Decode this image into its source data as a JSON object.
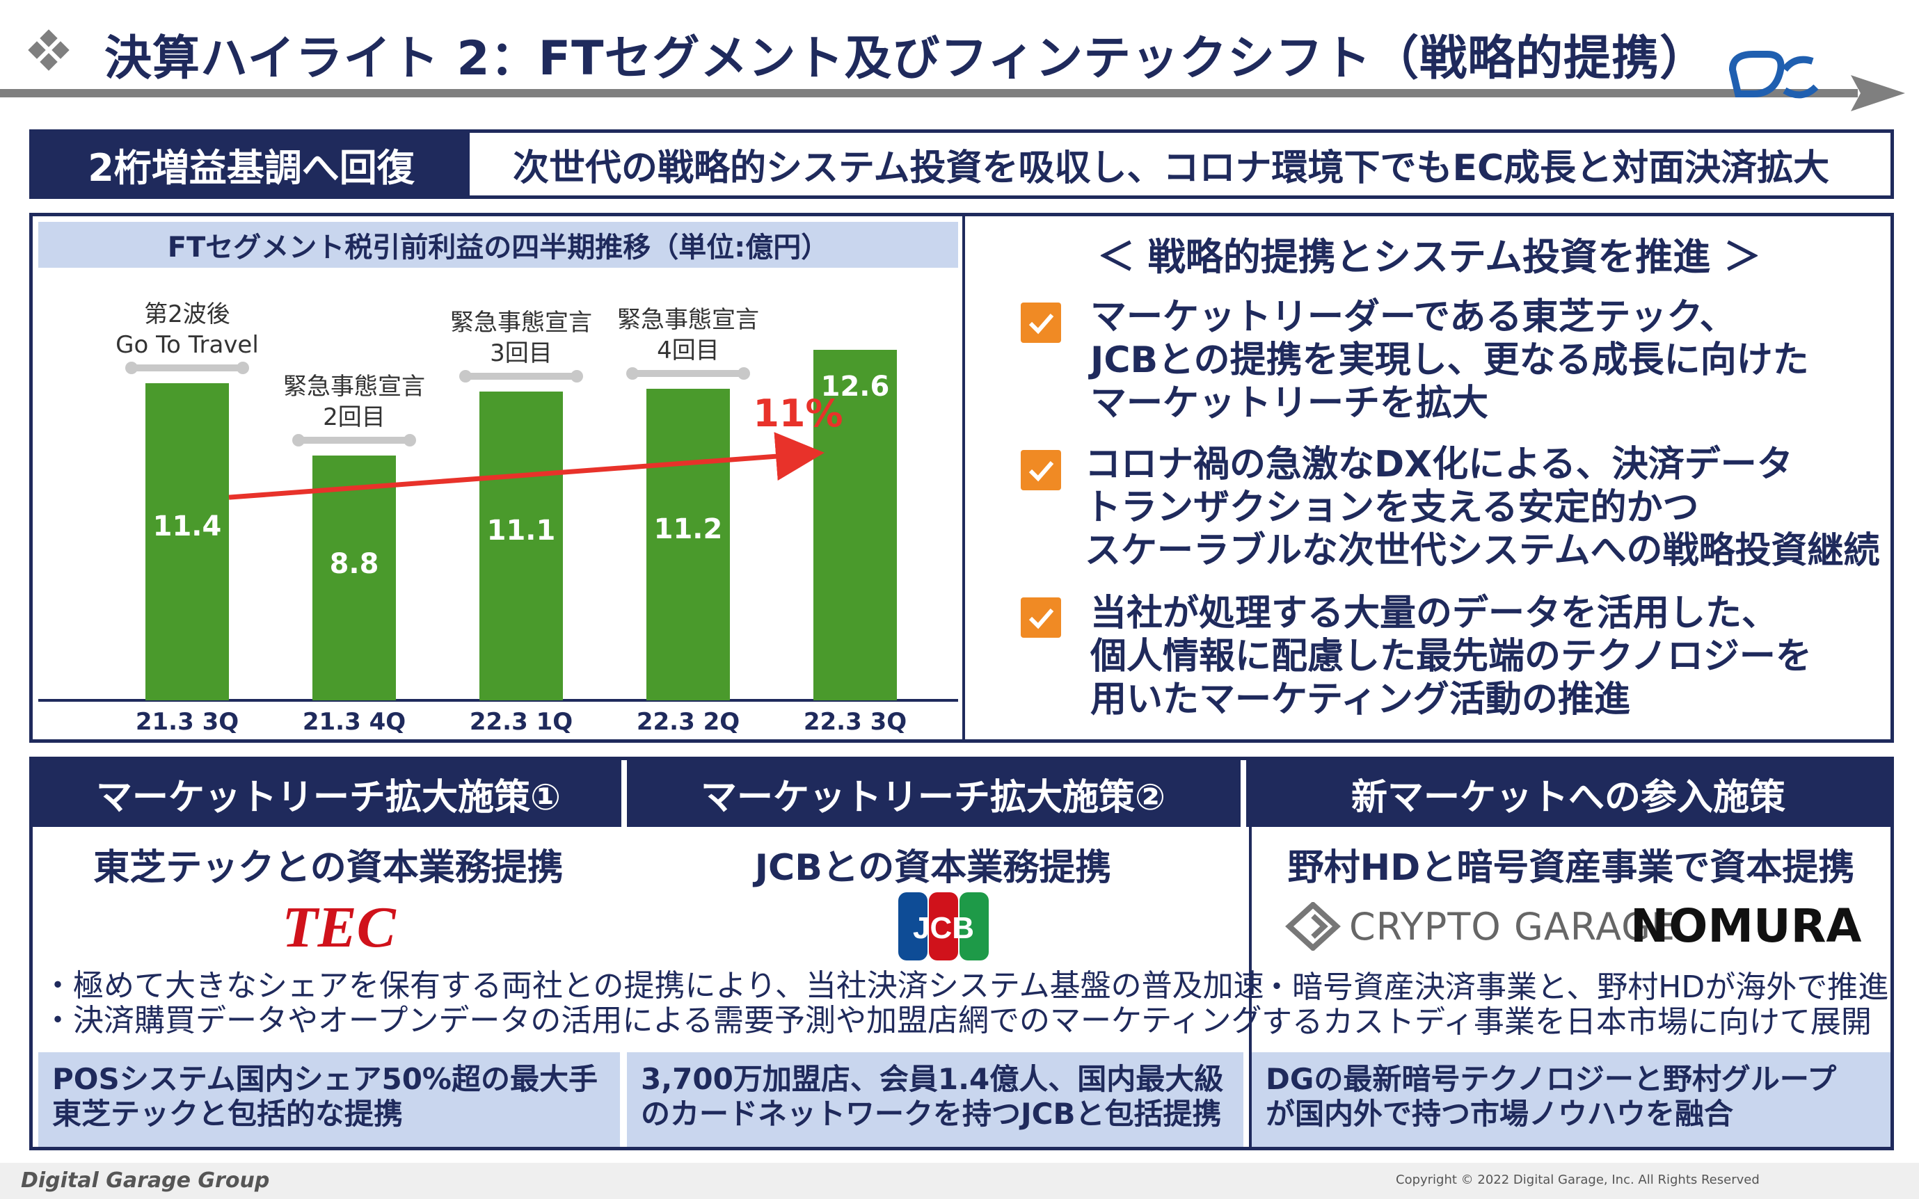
{
  "header": {
    "title": "決算ハイライト 2：FTセグメント及びフィンテックシフト（戦略的提携）"
  },
  "headline": {
    "tag": "2桁増益基調へ回復",
    "text": "次世代の戦略的システム投資を吸収し、コロナ環境下でもEC成長と対面決済拡大"
  },
  "chart_data": {
    "type": "bar",
    "title": "FTセグメント税引前利益の四半期推移（単位:億円）",
    "categories": [
      "21.3 3Q",
      "21.3 4Q",
      "22.3 1Q",
      "22.3 2Q",
      "22.3 3Q"
    ],
    "values": [
      11.4,
      8.8,
      11.1,
      11.2,
      12.6
    ],
    "value_labels": [
      "11.4",
      "8.8",
      "11.1",
      "11.2",
      "12.6"
    ],
    "bar_color": "#4a9a2c",
    "annotations": [
      {
        "category": "21.3 3Q",
        "lines": [
          "第2波後",
          "Go To Travel"
        ]
      },
      {
        "category": "21.3 4Q",
        "lines": [
          "緊急事態宣言",
          "2回目"
        ]
      },
      {
        "category": "22.3 1Q",
        "lines": [
          "緊急事態宣言",
          "3回目"
        ]
      },
      {
        "category": "22.3 2Q",
        "lines": [
          "緊急事態宣言",
          "4回目"
        ]
      }
    ],
    "growth_label": "11%",
    "growth_color": "#e8322a",
    "ylim": [
      0,
      14
    ]
  },
  "right": {
    "heading": "＜ 戦略的提携とシステム投資を推進 ＞",
    "bullets": [
      {
        "lines": [
          "マーケットリーダーである東芝テック、",
          "JCBとの提携を実現し、更なる成長に向けた",
          "マーケットリーチを拡大"
        ]
      },
      {
        "lines": [
          "コロナ禍の急激なDX化による、決済データ",
          "トランザクションを支える安定的かつ",
          "スケーラブルな次世代システムへの戦略投資継続"
        ]
      },
      {
        "lines": [
          "当社が処理する大量のデータを活用した、",
          "個人情報に配慮した最先端のテクノロジーを",
          "用いたマーケティング活動の推進"
        ]
      }
    ],
    "check_color": "#f08a24"
  },
  "bottom": {
    "col1": {
      "header": "マーケットリーチ拡大施策①",
      "subtitle": "東芝テックとの資本業務提携",
      "logo_text": "TEC",
      "summary": [
        "POSシステム国内シェア50%超の最大手",
        "東芝テックと包括的な提携"
      ]
    },
    "col2": {
      "header": "マーケットリーチ拡大施策②",
      "subtitle": "JCBとの資本業務提携",
      "logo_text": "JCB",
      "summary": [
        "3,700万加盟店、会員1.4億人、国内最大級",
        "のカードネットワークを持つJCBと包括提携"
      ]
    },
    "shared_desc": [
      "・極めて大きなシェアを保有する両社との提携により、当社決済システム基盤の普及加速",
      "・決済購買データやオープンデータの活用による需要予測や加盟店網でのマーケティング"
    ],
    "col3": {
      "header": "新マーケットへの参入施策",
      "subtitle": "野村HDと暗号資産事業で資本提携",
      "logo1_text": "CRYPTO GARAGE",
      "logo2_text": "NOMURA",
      "desc": [
        "・暗号資産決済事業と、野村HDが海外で推進",
        "するカストディ事業を日本市場に向けて展開"
      ],
      "summary": [
        "DGの最新暗号テクノロジーと野村グループ",
        "が国内外で持つ市場ノウハウを融合"
      ]
    }
  },
  "footer": {
    "brand": "Digital Garage Group",
    "copyright": "Copyright © 2022 Digital Garage, Inc. All Rights Reserved"
  },
  "colors": {
    "navy": "#1f2a5c",
    "light_blue": "#c9d6ee",
    "gray_line": "#7f7f7f"
  }
}
